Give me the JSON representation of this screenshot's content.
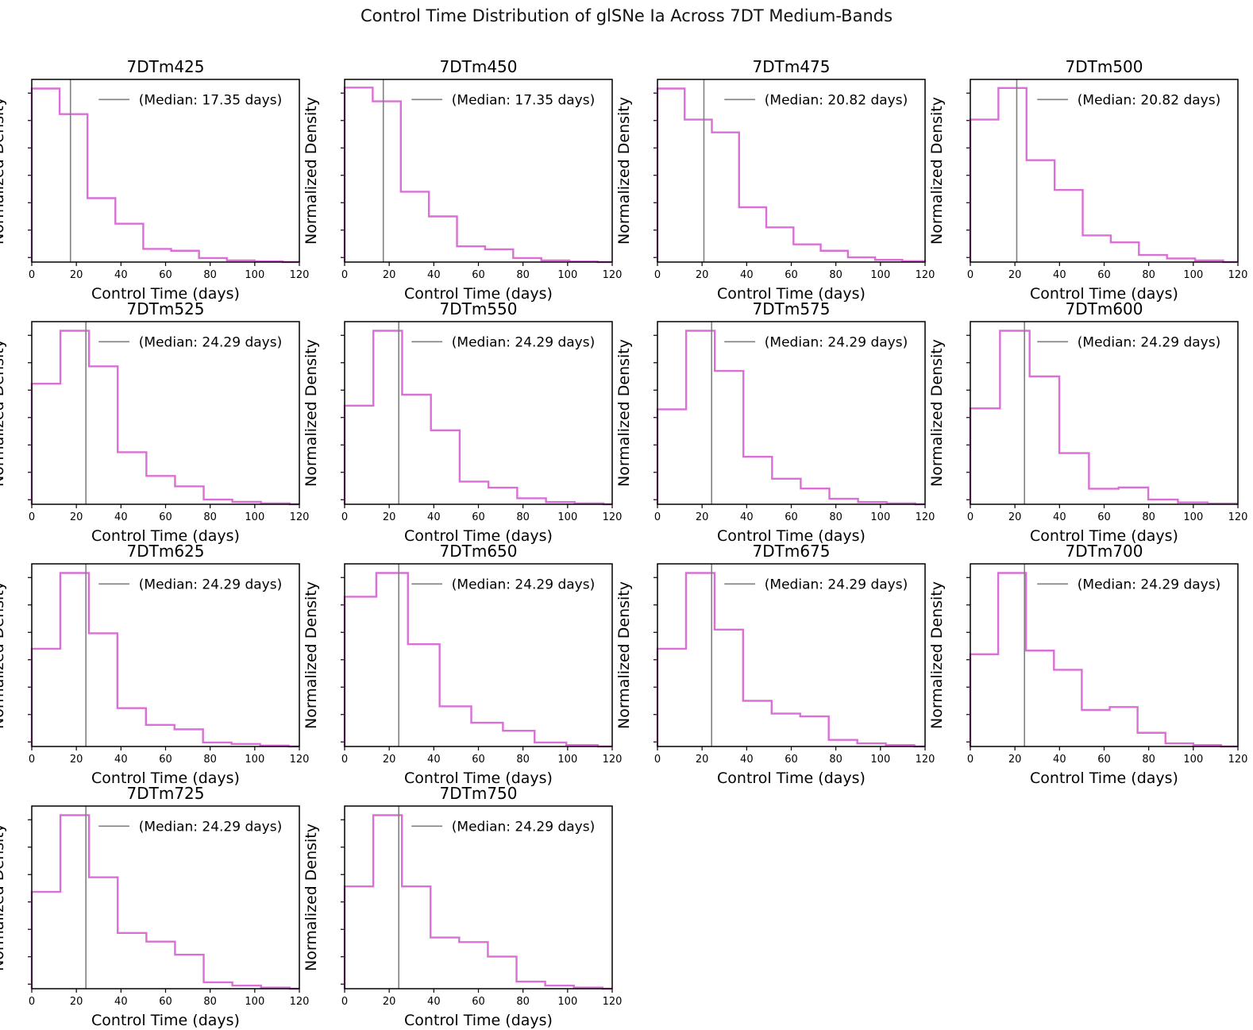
{
  "figure": {
    "title": "Control Time Distribution of glSNe Ia Across 7DT Medium-Bands",
    "colors": {
      "histogram": "#da70d6",
      "median_line": "#808080",
      "axis": "#000000",
      "background": "#ffffff"
    }
  },
  "chart_data": [
    {
      "type": "step-histogram",
      "title": "7DTm425",
      "xlabel": "Control Time (days)",
      "ylabel": "Normalized Density",
      "xlim": [
        0,
        120
      ],
      "x_ticks": [
        0,
        20,
        40,
        60,
        80,
        100,
        120
      ],
      "grid": false,
      "legend_position": "upper-right",
      "median_days": 17.35,
      "legend_label": "(Median: 17.35 days)",
      "bin_start_day": 0,
      "bin_width_days": 12.5,
      "bin_heights_fraction": [
        0.95,
        0.81,
        0.35,
        0.21,
        0.072,
        0.062,
        0.022,
        0.009,
        0.004
      ]
    },
    {
      "type": "step-histogram",
      "title": "7DTm450",
      "xlabel": "Control Time (days)",
      "ylabel": "Normalized Density",
      "xlim": [
        0,
        120
      ],
      "x_ticks": [
        0,
        20,
        40,
        60,
        80,
        100,
        120
      ],
      "grid": false,
      "legend_position": "upper-right",
      "median_days": 17.35,
      "legend_label": "(Median: 17.35 days)",
      "bin_start_day": 0,
      "bin_width_days": 12.6,
      "bin_heights_fraction": [
        0.955,
        0.88,
        0.385,
        0.25,
        0.086,
        0.07,
        0.022,
        0.009,
        0.003
      ]
    },
    {
      "type": "step-histogram",
      "title": "7DTm475",
      "xlabel": "Control Time (days)",
      "ylabel": "Normalized Density",
      "xlim": [
        0,
        120
      ],
      "x_ticks": [
        0,
        20,
        40,
        60,
        80,
        100,
        120
      ],
      "grid": false,
      "legend_position": "upper-right",
      "median_days": 20.82,
      "legend_label": "(Median: 20.82 days)",
      "bin_start_day": 0,
      "bin_width_days": 12.2,
      "bin_heights_fraction": [
        0.95,
        0.78,
        0.71,
        0.3,
        0.19,
        0.097,
        0.062,
        0.026,
        0.012,
        0.005
      ]
    },
    {
      "type": "step-histogram",
      "title": "7DTm500",
      "xlabel": "Control Time (days)",
      "ylabel": "Normalized Density",
      "xlim": [
        0,
        120
      ],
      "x_ticks": [
        0,
        20,
        40,
        60,
        80,
        100,
        120
      ],
      "grid": false,
      "legend_position": "upper-right",
      "median_days": 20.82,
      "legend_label": "(Median: 20.82 days)",
      "bin_start_day": 0,
      "bin_width_days": 12.6,
      "bin_heights_fraction": [
        0.78,
        0.953,
        0.558,
        0.395,
        0.146,
        0.108,
        0.039,
        0.02,
        0.009
      ]
    },
    {
      "type": "step-histogram",
      "title": "7DTm525",
      "xlabel": "Control Time (days)",
      "ylabel": "Normalized Density",
      "xlim": [
        0,
        120
      ],
      "x_ticks": [
        0,
        20,
        40,
        60,
        80,
        100,
        120
      ],
      "grid": false,
      "legend_position": "upper-right",
      "median_days": 24.29,
      "legend_label": "(Median: 24.29 days)",
      "bin_start_day": 0,
      "bin_width_days": 12.85,
      "bin_heights_fraction": [
        0.66,
        0.95,
        0.755,
        0.285,
        0.155,
        0.098,
        0.026,
        0.013,
        0.005
      ]
    },
    {
      "type": "step-histogram",
      "title": "7DTm550",
      "xlabel": "Control Time (days)",
      "ylabel": "Normalized Density",
      "xlim": [
        0,
        120
      ],
      "x_ticks": [
        0,
        20,
        40,
        60,
        80,
        100,
        120
      ],
      "grid": false,
      "legend_position": "upper-right",
      "median_days": 24.29,
      "legend_label": "(Median: 24.29 days)",
      "bin_start_day": 0,
      "bin_width_days": 12.9,
      "bin_heights_fraction": [
        0.54,
        0.95,
        0.6,
        0.405,
        0.124,
        0.091,
        0.033,
        0.012,
        0.005
      ]
    },
    {
      "type": "step-histogram",
      "title": "7DTm575",
      "xlabel": "Control Time (days)",
      "ylabel": "Normalized Density",
      "xlim": [
        0,
        120
      ],
      "x_ticks": [
        0,
        20,
        40,
        60,
        80,
        100,
        120
      ],
      "grid": false,
      "legend_position": "upper-right",
      "median_days": 24.29,
      "legend_label": "(Median: 24.29 days)",
      "bin_start_day": 0,
      "bin_width_days": 12.85,
      "bin_heights_fraction": [
        0.52,
        0.95,
        0.73,
        0.26,
        0.14,
        0.086,
        0.03,
        0.012,
        0.005
      ]
    },
    {
      "type": "step-histogram",
      "title": "7DTm600",
      "xlabel": "Control Time (days)",
      "ylabel": "Normalized Density",
      "xlim": [
        0,
        120
      ],
      "x_ticks": [
        0,
        20,
        40,
        60,
        80,
        100,
        120
      ],
      "grid": false,
      "legend_position": "upper-right",
      "median_days": 24.29,
      "legend_label": "(Median: 24.29 days)",
      "bin_start_day": 0,
      "bin_width_days": 13.3,
      "bin_heights_fraction": [
        0.525,
        0.95,
        0.7,
        0.28,
        0.085,
        0.092,
        0.026,
        0.01,
        0.004
      ]
    },
    {
      "type": "step-histogram",
      "title": "7DTm625",
      "xlabel": "Control Time (days)",
      "ylabel": "Normalized Density",
      "xlim": [
        0,
        120
      ],
      "x_ticks": [
        0,
        20,
        40,
        60,
        80,
        100,
        120
      ],
      "grid": false,
      "legend_position": "upper-right",
      "median_days": 24.29,
      "legend_label": "(Median: 24.29 days)",
      "bin_start_day": 0,
      "bin_width_days": 12.8,
      "bin_heights_fraction": [
        0.535,
        0.95,
        0.62,
        0.21,
        0.118,
        0.094,
        0.022,
        0.014,
        0.005
      ]
    },
    {
      "type": "step-histogram",
      "title": "7DTm650",
      "xlabel": "Control Time (days)",
      "ylabel": "Normalized Density",
      "xlim": [
        0,
        120
      ],
      "x_ticks": [
        0,
        20,
        40,
        60,
        80,
        100,
        120
      ],
      "grid": false,
      "legend_position": "upper-right",
      "median_days": 24.29,
      "legend_label": "(Median: 24.29 days)",
      "bin_start_day": 0,
      "bin_width_days": 14.2,
      "bin_heights_fraction": [
        0.82,
        0.95,
        0.56,
        0.22,
        0.13,
        0.086,
        0.022,
        0.008
      ]
    },
    {
      "type": "step-histogram",
      "title": "7DTm675",
      "xlabel": "Control Time (days)",
      "ylabel": "Normalized Density",
      "xlim": [
        0,
        120
      ],
      "x_ticks": [
        0,
        20,
        40,
        60,
        80,
        100,
        120
      ],
      "grid": false,
      "legend_position": "upper-right",
      "median_days": 24.29,
      "legend_label": "(Median: 24.29 days)",
      "bin_start_day": 0,
      "bin_width_days": 12.8,
      "bin_heights_fraction": [
        0.535,
        0.95,
        0.64,
        0.25,
        0.18,
        0.165,
        0.036,
        0.017,
        0.008
      ]
    },
    {
      "type": "step-histogram",
      "title": "7DTm700",
      "xlabel": "Control Time (days)",
      "ylabel": "Normalized Density",
      "xlim": [
        0,
        120
      ],
      "x_ticks": [
        0,
        20,
        40,
        60,
        80,
        100,
        120
      ],
      "grid": false,
      "legend_position": "upper-right",
      "median_days": 24.29,
      "legend_label": "(Median: 24.29 days)",
      "bin_start_day": 0,
      "bin_width_days": 12.5,
      "bin_heights_fraction": [
        0.505,
        0.95,
        0.525,
        0.42,
        0.2,
        0.216,
        0.075,
        0.017,
        0.008
      ]
    },
    {
      "type": "step-histogram",
      "title": "7DTm725",
      "xlabel": "Control Time (days)",
      "ylabel": "Normalized Density",
      "xlim": [
        0,
        120
      ],
      "x_ticks": [
        0,
        20,
        40,
        60,
        80,
        100,
        120
      ],
      "grid": false,
      "legend_position": "upper-right",
      "median_days": 24.29,
      "legend_label": "(Median: 24.29 days)",
      "bin_start_day": 0,
      "bin_width_days": 12.85,
      "bin_heights_fraction": [
        0.53,
        0.95,
        0.61,
        0.305,
        0.258,
        0.186,
        0.035,
        0.017,
        0.006
      ]
    },
    {
      "type": "step-histogram",
      "title": "7DTm750",
      "xlabel": "Control Time (days)",
      "ylabel": "Normalized Density",
      "xlim": [
        0,
        120
      ],
      "x_ticks": [
        0,
        20,
        40,
        60,
        80,
        100,
        120
      ],
      "grid": false,
      "legend_position": "upper-right",
      "median_days": 24.29,
      "legend_label": "(Median: 24.29 days)",
      "bin_start_day": 0,
      "bin_width_days": 12.85,
      "bin_heights_fraction": [
        0.56,
        0.95,
        0.56,
        0.28,
        0.255,
        0.176,
        0.039,
        0.017,
        0.006
      ]
    }
  ]
}
